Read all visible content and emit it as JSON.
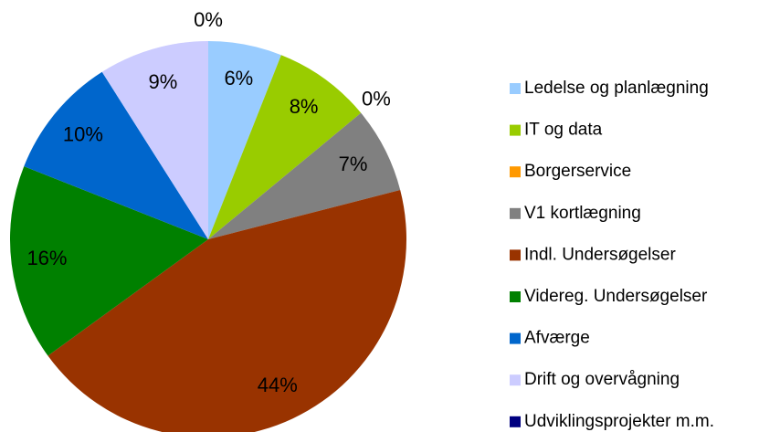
{
  "chart_data": {
    "type": "pie",
    "categories": [
      "Ledelse og planlægning",
      "IT og data",
      "Borgerservice",
      "V1 kortlægning",
      "Indl. Undersøgelser",
      "Videreg. Undersøgelser",
      "Afværge",
      "Drift og overvågning",
      "Udviklingsprojekter m.m."
    ],
    "values": [
      6,
      8,
      0,
      7,
      44,
      16,
      10,
      9,
      0
    ],
    "value_labels": [
      "6%",
      "8%",
      "0%",
      "7%",
      "44%",
      "16%",
      "10%",
      "9%",
      "0%"
    ],
    "colors": [
      "#99ccff",
      "#99cc00",
      "#ff9900",
      "#808080",
      "#993300",
      "#008000",
      "#0066cc",
      "#ccccff",
      "#000080"
    ],
    "legend": "right"
  }
}
